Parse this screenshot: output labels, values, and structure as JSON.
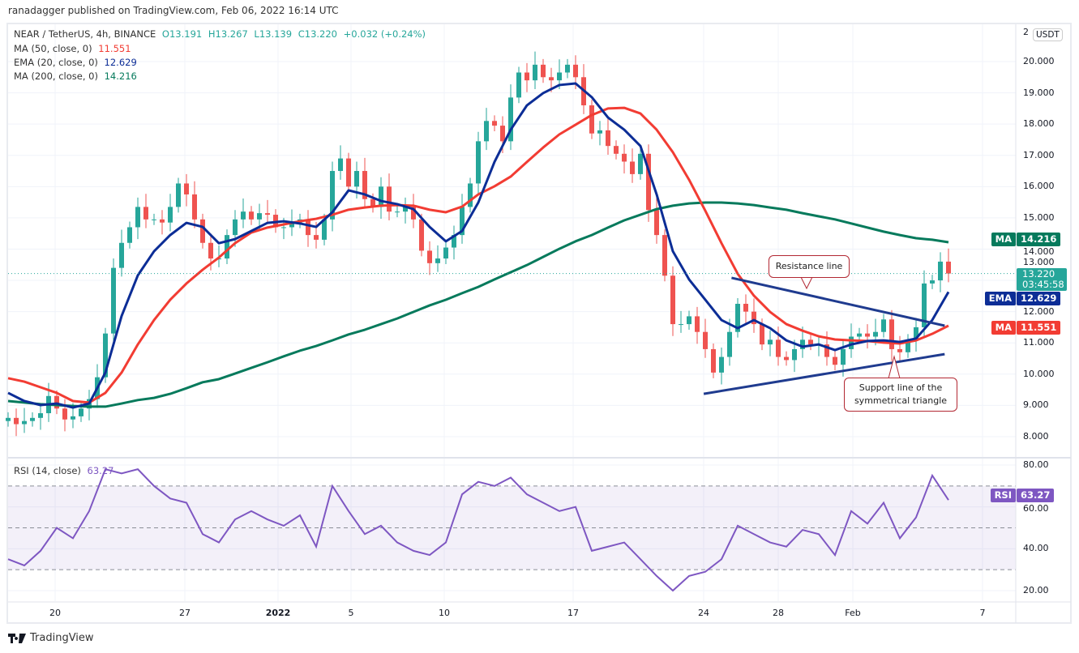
{
  "header": {
    "publisher_line": "ranadagger published on TradingView.com, Feb 06, 2022 16:14 UTC"
  },
  "legend": {
    "symbol": "NEAR / TetherUS, 4h, BINANCE",
    "open": "O13.191",
    "high": "H13.267",
    "low": "L13.139",
    "close": "C13.220",
    "change": "+0.032 (+0.24%)",
    "ma50_label": "MA (50, close, 0)",
    "ma50_value": "11.551",
    "ema20_label": "EMA (20, close, 0)",
    "ema20_value": "12.629",
    "ma200_label": "MA (200, close, 0)",
    "ma200_value": "14.216",
    "rsi_label": "RSI (14, close)",
    "rsi_value": "63.27"
  },
  "price_axis": {
    "currency": "USDT",
    "ticks": [
      "20.000",
      "19.000",
      "18.000",
      "17.000",
      "16.000",
      "15.000",
      "14.000",
      "13.000",
      "12.000",
      "11.000",
      "10.000",
      "9.000",
      "8.000"
    ],
    "top_partial": "2",
    "badges": {
      "ma200": {
        "tag": "MA",
        "value": "14.216"
      },
      "last": {
        "value": "13.220",
        "countdown": "03:45:58"
      },
      "ema20": {
        "tag": "EMA",
        "value": "12.629"
      },
      "ma50": {
        "tag": "MA",
        "value": "11.551"
      },
      "rsi": {
        "tag": "RSI",
        "value": "63.27"
      }
    }
  },
  "rsi_axis": {
    "ticks": [
      "80.00",
      "60.00",
      "40.00",
      "20.00"
    ]
  },
  "time_axis": {
    "ticks": [
      "20",
      "27",
      "2022",
      "5",
      "10",
      "17",
      "24",
      "28",
      "Feb",
      "7"
    ]
  },
  "annotations": {
    "resistance_label": "Resistance line",
    "support_label": "Support line of the symmetrical triangle"
  },
  "footer": {
    "brand": "TradingView"
  },
  "colors": {
    "up": "#26a69a",
    "down": "#ef5350",
    "ema20": "#0c2d96",
    "ma50": "#f23c33",
    "ma200": "#067a5c",
    "rsi": "#7e57c2",
    "trendline": "#1f3b8f",
    "callout_border": "#b22833"
  },
  "chart_data": {
    "type": "candlestick",
    "symbol": "NEAR / TetherUS",
    "interval": "4h",
    "time_range": [
      "2021-12-17 12:00",
      "2022-02-06 12:00"
    ],
    "ylim": [
      7.5,
      21
    ],
    "grid": true,
    "closes": [
      8.6,
      8.4,
      8.5,
      8.6,
      8.75,
      9.3,
      8.9,
      8.55,
      8.65,
      8.9,
      9.2,
      9.9,
      11.3,
      13.4,
      14.2,
      14.7,
      15.35,
      14.95,
      14.95,
      14.85,
      15.35,
      16.1,
      15.75,
      14.95,
      14.2,
      13.7,
      13.7,
      14.45,
      14.95,
      15.2,
      14.95,
      15.15,
      15.1,
      14.7,
      14.7,
      14.85,
      14.95,
      14.45,
      14.3,
      14.95,
      16.5,
      16.9,
      16.0,
      16.5,
      15.6,
      15.35,
      16.0,
      15.2,
      15.2,
      15.35,
      14.95,
      13.95,
      13.55,
      13.7,
      14.05,
      14.45,
      15.35,
      16.1,
      17.45,
      18.1,
      17.95,
      17.45,
      18.85,
      19.65,
      19.4,
      19.9,
      19.5,
      19.4,
      19.65,
      19.9,
      19.5,
      18.6,
      17.7,
      17.8,
      17.3,
      17.05,
      16.8,
      16.4,
      17.05,
      15.25,
      14.45,
      13.15,
      11.6,
      11.6,
      11.85,
      11.35,
      10.8,
      10.05,
      10.55,
      11.35,
      12.25,
      12.0,
      11.6,
      10.95,
      11.1,
      10.55,
      10.45,
      10.8,
      11.1,
      10.95,
      10.95,
      10.55,
      10.3,
      10.8,
      11.2,
      11.3,
      11.2,
      11.35,
      11.75,
      10.8,
      10.7,
      11.1,
      11.5,
      12.9,
      13.0,
      13.6,
      13.22
    ],
    "ema20": [
      9.4,
      9.14,
      9.01,
      9.06,
      8.93,
      9.06,
      10.05,
      11.86,
      13.16,
      13.93,
      14.45,
      14.84,
      14.71,
      14.19,
      14.32,
      14.58,
      14.84,
      14.89,
      14.82,
      14.71,
      15.18,
      15.88,
      15.75,
      15.54,
      15.44,
      15.28,
      14.71,
      14.25,
      14.58,
      15.49,
      16.79,
      17.82,
      18.6,
      18.99,
      19.25,
      19.3,
      18.86,
      18.21,
      17.82,
      17.3,
      15.75,
      13.93,
      13.03,
      12.38,
      11.73,
      11.47,
      11.73,
      11.47,
      11.08,
      10.88,
      10.95,
      10.77,
      10.95,
      11.06,
      11.08,
      11.03,
      11.14,
      11.73,
      12.63
    ],
    "ma50": [
      9.87,
      9.76,
      9.58,
      9.4,
      9.14,
      9.09,
      9.4,
      10.05,
      10.95,
      11.73,
      12.38,
      12.9,
      13.34,
      13.73,
      14.19,
      14.53,
      14.69,
      14.79,
      14.89,
      14.97,
      15.1,
      15.26,
      15.33,
      15.39,
      15.41,
      15.39,
      15.26,
      15.18,
      15.36,
      15.75,
      16.01,
      16.32,
      16.79,
      17.25,
      17.67,
      17.98,
      18.29,
      18.5,
      18.52,
      18.34,
      17.82,
      17.1,
      16.22,
      15.23,
      14.19,
      13.21,
      12.51,
      11.99,
      11.6,
      11.39,
      11.21,
      11.11,
      11.08,
      11.06,
      11.01,
      10.98,
      11.08,
      11.29,
      11.55
    ],
    "ma200": [
      9.14,
      9.09,
      9.04,
      9.01,
      8.98,
      8.96,
      8.96,
      9.06,
      9.17,
      9.24,
      9.37,
      9.55,
      9.74,
      9.84,
      10.02,
      10.2,
      10.38,
      10.57,
      10.75,
      10.9,
      11.08,
      11.27,
      11.42,
      11.6,
      11.78,
      11.99,
      12.2,
      12.38,
      12.59,
      12.79,
      13.03,
      13.26,
      13.49,
      13.75,
      14.01,
      14.25,
      14.45,
      14.69,
      14.92,
      15.1,
      15.28,
      15.39,
      15.46,
      15.49,
      15.49,
      15.46,
      15.41,
      15.33,
      15.26,
      15.15,
      15.05,
      14.95,
      14.82,
      14.69,
      14.56,
      14.45,
      14.35,
      14.3,
      14.22
    ],
    "rsi": {
      "ylim": [
        15,
        85
      ],
      "bands": [
        70,
        50,
        30
      ],
      "values": [
        35,
        32,
        39,
        50,
        45,
        58,
        78,
        76,
        78,
        70,
        64,
        62,
        47,
        43,
        54,
        58,
        54,
        51,
        56,
        41,
        70,
        58,
        47,
        51,
        43,
        39,
        37,
        43,
        66,
        72,
        70,
        74,
        66,
        62,
        58,
        60,
        39,
        41,
        43,
        35,
        27,
        20,
        27,
        29,
        35,
        51,
        47,
        43,
        41,
        49,
        47,
        37,
        58,
        52,
        62,
        45,
        55,
        75,
        63.27
      ]
    },
    "trendlines": {
      "resistance": {
        "from": [
          "2022-01-25 12:00",
          13.08
        ],
        "to": [
          "2022-02-06 00:00",
          11.55
        ]
      },
      "support": {
        "from": [
          "2022-01-24 00:00",
          9.37
        ],
        "to": [
          "2022-02-06 00:00",
          10.64
        ]
      }
    },
    "last_price": 13.22
  }
}
